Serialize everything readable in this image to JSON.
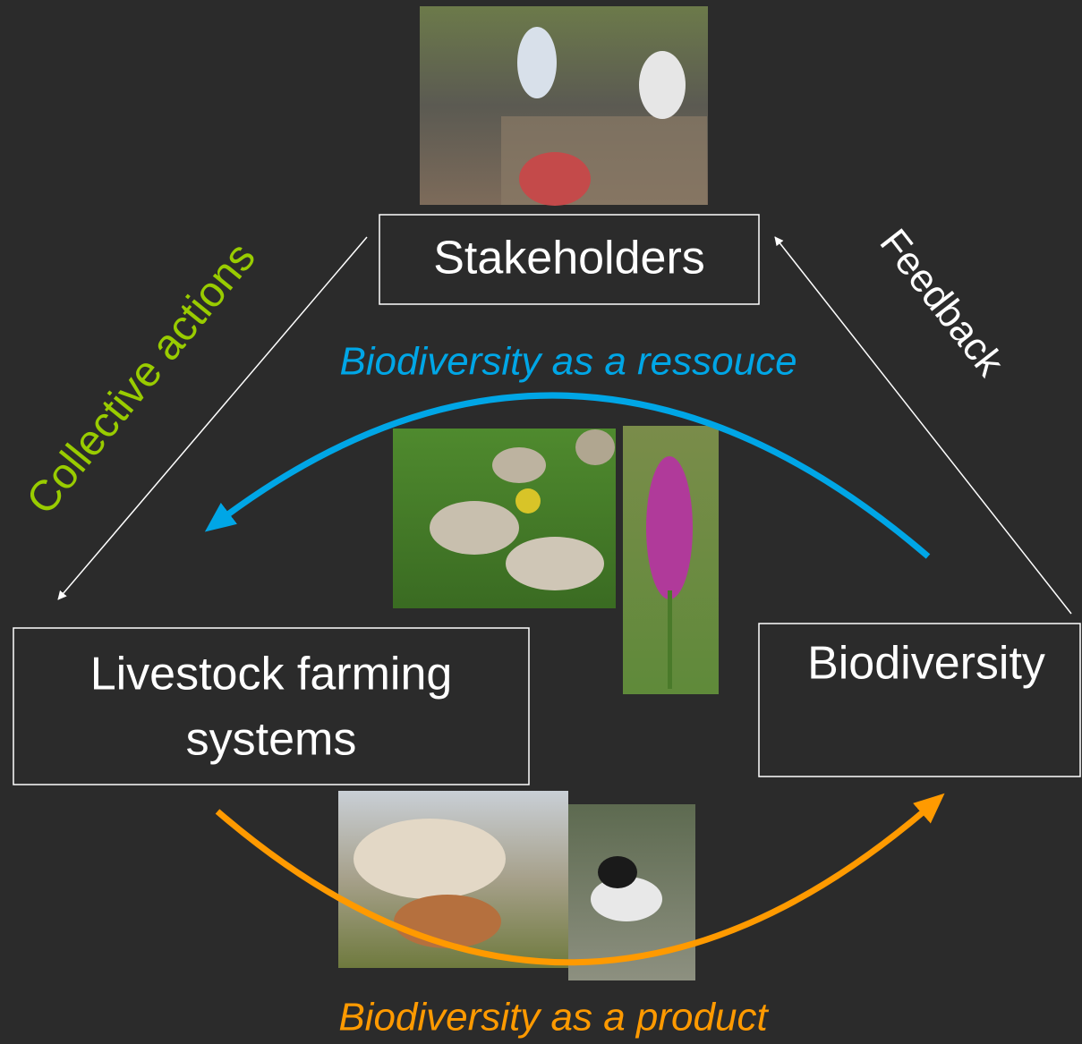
{
  "nodes": [
    {
      "label": "Stakeholders"
    },
    {
      "label_lines": [
        "Livestock farming",
        "systems"
      ]
    },
    {
      "label": "Biodiversity"
    }
  ],
  "edges": [
    {
      "label": "Collective actions"
    },
    {
      "label": "Feedback"
    },
    {
      "label": "Biodiversity as a ressouce"
    },
    {
      "label": "Biodiversity as a product"
    }
  ]
}
